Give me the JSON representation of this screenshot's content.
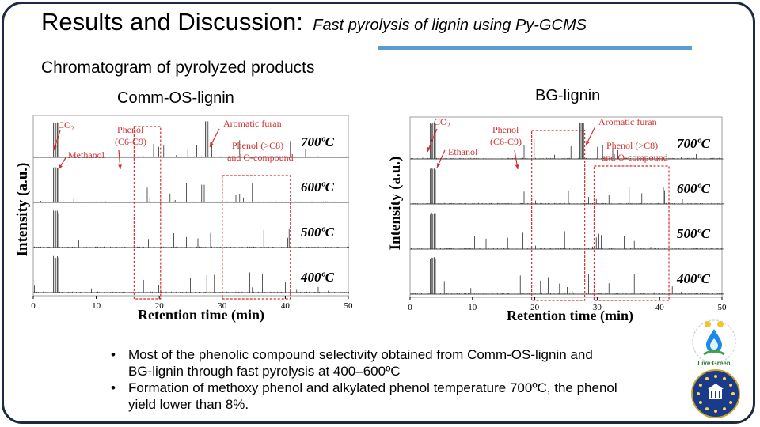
{
  "title": {
    "main": "Results and Discussion:",
    "sub": "Fast pyrolysis of lignin using Py-GCMS"
  },
  "subtitle": "Chromatogram of pyrolyzed products",
  "panels": [
    {
      "title": "Comm-OS-lignin",
      "ylabel": "Intensity (a.u.)",
      "xlabel": "Retention time (min)",
      "x_ticks": [
        "0",
        "10",
        "20",
        "30",
        "40",
        "50"
      ],
      "temps": [
        "700ºC",
        "600ºC",
        "500ºC",
        "400ºC"
      ],
      "annotations": {
        "co2": "CO",
        "co2_sub": "2",
        "phenol_1": "Phenol",
        "phenol_2": "(C6-C9)",
        "methanol": "Methanol",
        "furan": "Aromatic furan",
        "ocomp_1": "Phenol (>C8)",
        "ocomp_2": "and O-compound"
      }
    },
    {
      "title": "BG-lignin",
      "ylabel": "Intensity (a.u.)",
      "xlabel": "Retention time (min)",
      "x_ticks": [
        "0",
        "10",
        "20",
        "30",
        "40",
        "50"
      ],
      "temps": [
        "700ºC",
        "600ºC",
        "500ºC",
        "400ºC"
      ],
      "annotations": {
        "co2": "CO",
        "co2_sub": "2",
        "phenol_1": "Phenol",
        "phenol_2": "(C6-C9)",
        "ethanol": "Ethanol",
        "furan": "Aromatic furan",
        "ocomp_1": "Phenol (>C8)",
        "ocomp_2": "and O-compound"
      }
    }
  ],
  "bullets": [
    "Most of the phenolic compound selectivity obtained from Comm-OS-lignin and BG-lignin through fast pyrolysis at 400–600ºC",
    "Formation of methoxy phenol and alkylated phenol temperature 700ºC, the phenol yield lower than 8%."
  ],
  "logos": {
    "top_text": "Live Green",
    "top_icon": "water-drop-leaf-logo-icon",
    "bottom_icon": "eu-star-emblem-icon"
  },
  "colors": {
    "accent_rule": "#5b9bd5",
    "annotation_red": "#d32f2f",
    "frame": "#1c2a44"
  }
}
